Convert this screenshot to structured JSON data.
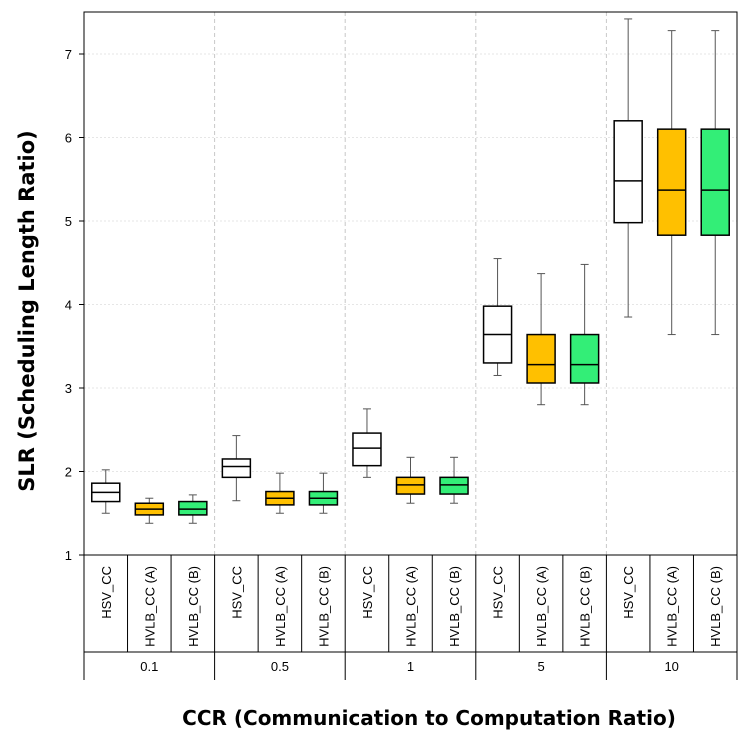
{
  "chart_data": {
    "type": "boxplot",
    "title": "",
    "ylabel": "SLR (Scheduling Length Ratio)",
    "xlabel": "CCR (Communication to Computation Ratio)",
    "ylim": [
      1,
      7.5
    ],
    "yticks": [
      1,
      2,
      3,
      4,
      5,
      6,
      7
    ],
    "series": [
      {
        "name": "HSV_CC",
        "color": "#ffffff"
      },
      {
        "name": "HVLB_CC (A)",
        "color": "#ffc000"
      },
      {
        "name": "HVLB_CC (B)",
        "color": "#33ee77"
      }
    ],
    "groups": [
      {
        "label": "0.1",
        "boxes": [
          {
            "series": "HSV_CC",
            "min": 1.5,
            "q1": 1.64,
            "median": 1.75,
            "q3": 1.86,
            "max": 2.02
          },
          {
            "series": "HVLB_CC (A)",
            "min": 1.38,
            "q1": 1.48,
            "median": 1.55,
            "q3": 1.62,
            "max": 1.68
          },
          {
            "series": "HVLB_CC (B)",
            "min": 1.38,
            "q1": 1.48,
            "median": 1.55,
            "q3": 1.64,
            "max": 1.72
          }
        ]
      },
      {
        "label": "0.5",
        "boxes": [
          {
            "series": "HSV_CC",
            "min": 1.65,
            "q1": 1.93,
            "median": 2.06,
            "q3": 2.15,
            "max": 2.43
          },
          {
            "series": "HVLB_CC (A)",
            "min": 1.5,
            "q1": 1.6,
            "median": 1.68,
            "q3": 1.76,
            "max": 1.98
          },
          {
            "series": "HVLB_CC (B)",
            "min": 1.5,
            "q1": 1.6,
            "median": 1.68,
            "q3": 1.76,
            "max": 1.98
          }
        ]
      },
      {
        "label": "1",
        "boxes": [
          {
            "series": "HSV_CC",
            "min": 1.93,
            "q1": 2.07,
            "median": 2.28,
            "q3": 2.46,
            "max": 2.75
          },
          {
            "series": "HVLB_CC (A)",
            "min": 1.62,
            "q1": 1.73,
            "median": 1.84,
            "q3": 1.93,
            "max": 2.17
          },
          {
            "series": "HVLB_CC (B)",
            "min": 1.62,
            "q1": 1.73,
            "median": 1.84,
            "q3": 1.93,
            "max": 2.17
          }
        ]
      },
      {
        "label": "5",
        "boxes": [
          {
            "series": "HSV_CC",
            "min": 3.15,
            "q1": 3.3,
            "median": 3.64,
            "q3": 3.98,
            "max": 4.55
          },
          {
            "series": "HVLB_CC (A)",
            "min": 2.8,
            "q1": 3.06,
            "median": 3.28,
            "q3": 3.64,
            "max": 4.37
          },
          {
            "series": "HVLB_CC (B)",
            "min": 2.8,
            "q1": 3.06,
            "median": 3.28,
            "q3": 3.64,
            "max": 4.48
          }
        ]
      },
      {
        "label": "10",
        "boxes": [
          {
            "series": "HSV_CC",
            "min": 3.85,
            "q1": 4.98,
            "median": 5.48,
            "q3": 6.2,
            "max": 7.42
          },
          {
            "series": "HVLB_CC (A)",
            "min": 3.64,
            "q1": 4.83,
            "median": 5.37,
            "q3": 6.1,
            "max": 7.28
          },
          {
            "series": "HVLB_CC (B)",
            "min": 3.64,
            "q1": 4.83,
            "median": 5.37,
            "q3": 6.1,
            "max": 7.28
          }
        ]
      }
    ]
  }
}
